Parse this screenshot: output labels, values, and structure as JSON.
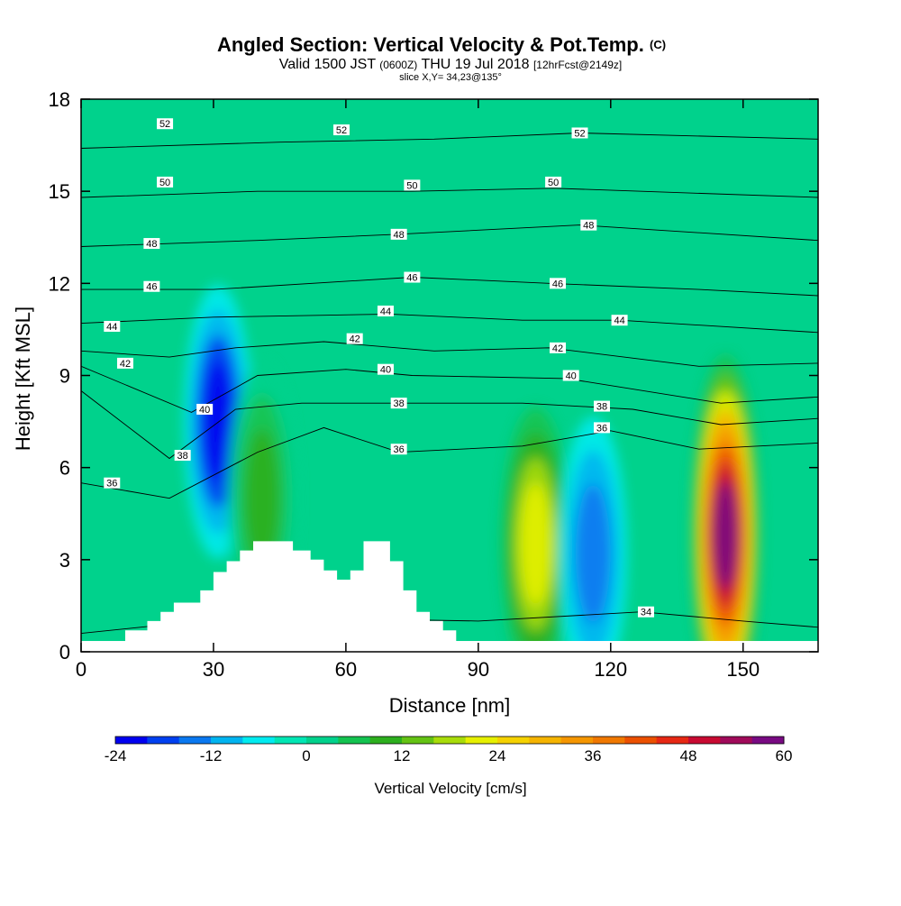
{
  "titles": {
    "main": "Angled Section: Vertical Velocity & Pot.Temp.",
    "main_unit": "(C)",
    "valid_prefix": "Valid 1500 JST",
    "valid_utc": "(0600Z)",
    "valid_date": "THU 19 Jul 2018",
    "forecast": "[12hrFcst@2149z]",
    "slice": "slice X,Y= 34,23@135°"
  },
  "chart_data": {
    "type": "heatmap",
    "xlabel": "Distance [nm]",
    "ylabel": "Height [Kft MSL]",
    "xlim": [
      0,
      167
    ],
    "ylim": [
      0,
      18
    ],
    "x_ticks": [
      0,
      30,
      60,
      90,
      120,
      150
    ],
    "y_ticks": [
      0,
      3,
      6,
      9,
      12,
      15,
      18
    ],
    "colorbar": {
      "title": "Vertical Velocity [cm/s]",
      "tick_values": [
        -24,
        -12,
        0,
        12,
        24,
        36,
        48,
        60
      ],
      "tick_labels": [
        "-24",
        "-12",
        "0",
        "12",
        "24",
        "36",
        "48",
        "60"
      ],
      "levels": [
        -24,
        -20,
        -16,
        -12,
        -8,
        -4,
        0,
        4,
        8,
        12,
        16,
        20,
        24,
        28,
        32,
        36,
        40,
        44,
        48,
        52,
        56,
        60
      ],
      "colors": [
        "#0000f0",
        "#0040f0",
        "#0a78f0",
        "#00b4f0",
        "#00ebf0",
        "#00e6b4",
        "#00d28c",
        "#14c350",
        "#2daf1e",
        "#64c314",
        "#a8dc0a",
        "#e6f000",
        "#f5d200",
        "#f5b400",
        "#f59600",
        "#f07800",
        "#eb5000",
        "#e62814",
        "#c80a32",
        "#a00a5a",
        "#780a82"
      ]
    },
    "features": [
      {
        "name": "downdraft",
        "x": 31,
        "y": 7.5,
        "value": -22
      },
      {
        "name": "updraft",
        "x": 41,
        "y": 5.0,
        "value": 10
      },
      {
        "name": "updraft",
        "x": 103,
        "y": 3.5,
        "value": 22
      },
      {
        "name": "downdraft",
        "x": 116,
        "y": 3.2,
        "value": -16
      },
      {
        "name": "updraft",
        "x": 146,
        "y": 3.8,
        "value": 56
      }
    ],
    "terrain": [
      [
        0,
        0.35
      ],
      [
        10,
        0.35
      ],
      [
        10,
        0.7
      ],
      [
        15,
        0.7
      ],
      [
        15,
        1.0
      ],
      [
        18,
        1.0
      ],
      [
        18,
        1.3
      ],
      [
        21,
        1.3
      ],
      [
        21,
        1.6
      ],
      [
        27,
        1.6
      ],
      [
        27,
        2.0
      ],
      [
        30,
        2.0
      ],
      [
        30,
        2.6
      ],
      [
        33,
        2.6
      ],
      [
        33,
        2.95
      ],
      [
        36,
        2.95
      ],
      [
        36,
        3.3
      ],
      [
        39,
        3.3
      ],
      [
        39,
        3.6
      ],
      [
        48,
        3.6
      ],
      [
        48,
        3.3
      ],
      [
        52,
        3.3
      ],
      [
        52,
        3.0
      ],
      [
        55,
        3.0
      ],
      [
        55,
        2.65
      ],
      [
        58,
        2.65
      ],
      [
        58,
        2.35
      ],
      [
        61,
        2.35
      ],
      [
        61,
        2.65
      ],
      [
        64,
        2.65
      ],
      [
        64,
        3.6
      ],
      [
        70,
        3.6
      ],
      [
        70,
        2.95
      ],
      [
        73,
        2.95
      ],
      [
        73,
        2.0
      ],
      [
        76,
        2.0
      ],
      [
        76,
        1.3
      ],
      [
        79,
        1.3
      ],
      [
        79,
        1.0
      ],
      [
        82,
        1.0
      ],
      [
        82,
        0.7
      ],
      [
        85,
        0.7
      ],
      [
        85,
        0.35
      ],
      [
        167,
        0.35
      ]
    ],
    "theta_contours": [
      {
        "label": "34",
        "pts": [
          [
            0,
            0.6
          ],
          [
            20,
            0.9
          ],
          [
            50,
            1.1
          ],
          [
            90,
            1.0
          ],
          [
            127,
            1.3
          ],
          [
            150,
            1.0
          ],
          [
            167,
            0.8
          ]
        ]
      },
      {
        "label": "36",
        "pts": [
          [
            0,
            5.5
          ],
          [
            20,
            5.0
          ],
          [
            40,
            6.5
          ],
          [
            55,
            7.3
          ],
          [
            72,
            6.5
          ],
          [
            100,
            6.7
          ],
          [
            120,
            7.2
          ],
          [
            140,
            6.6
          ],
          [
            167,
            6.8
          ]
        ]
      },
      {
        "label": "38",
        "pts": [
          [
            0,
            8.5
          ],
          [
            20,
            6.3
          ],
          [
            35,
            7.9
          ],
          [
            50,
            8.1
          ],
          [
            72,
            8.1
          ],
          [
            100,
            8.1
          ],
          [
            125,
            7.9
          ],
          [
            145,
            7.4
          ],
          [
            167,
            7.6
          ]
        ]
      },
      {
        "label": "40",
        "pts": [
          [
            0,
            9.3
          ],
          [
            25,
            7.8
          ],
          [
            40,
            9.0
          ],
          [
            60,
            9.2
          ],
          [
            75,
            9.0
          ],
          [
            110,
            8.9
          ],
          [
            145,
            8.1
          ],
          [
            167,
            8.3
          ]
        ]
      },
      {
        "label": "42",
        "pts": [
          [
            0,
            9.8
          ],
          [
            20,
            9.6
          ],
          [
            35,
            9.9
          ],
          [
            55,
            10.1
          ],
          [
            80,
            9.8
          ],
          [
            106,
            9.9
          ],
          [
            140,
            9.3
          ],
          [
            167,
            9.4
          ]
        ]
      },
      {
        "label": "44",
        "pts": [
          [
            0,
            10.7
          ],
          [
            30,
            10.9
          ],
          [
            70,
            11.0
          ],
          [
            100,
            10.8
          ],
          [
            122,
            10.8
          ],
          [
            167,
            10.4
          ]
        ]
      },
      {
        "label": "46",
        "pts": [
          [
            0,
            11.8
          ],
          [
            30,
            11.8
          ],
          [
            75,
            12.2
          ],
          [
            106,
            12.0
          ],
          [
            140,
            11.8
          ],
          [
            167,
            11.6
          ]
        ]
      },
      {
        "label": "48",
        "pts": [
          [
            0,
            13.2
          ],
          [
            40,
            13.4
          ],
          [
            72,
            13.6
          ],
          [
            113,
            13.9
          ],
          [
            167,
            13.4
          ]
        ]
      },
      {
        "label": "50",
        "pts": [
          [
            0,
            14.8
          ],
          [
            40,
            15.0
          ],
          [
            75,
            15.0
          ],
          [
            107,
            15.1
          ],
          [
            167,
            14.8
          ]
        ]
      },
      {
        "label": "52",
        "pts": [
          [
            0,
            16.4
          ],
          [
            45,
            16.6
          ],
          [
            80,
            16.7
          ],
          [
            113,
            16.9
          ],
          [
            167,
            16.7
          ]
        ]
      }
    ],
    "theta_labels": [
      {
        "text": "52",
        "x": 19,
        "y": 17.2
      },
      {
        "text": "52",
        "x": 59,
        "y": 17.0
      },
      {
        "text": "52",
        "x": 113,
        "y": 16.9
      },
      {
        "text": "50",
        "x": 19,
        "y": 15.3
      },
      {
        "text": "50",
        "x": 75,
        "y": 15.2
      },
      {
        "text": "50",
        "x": 107,
        "y": 15.3
      },
      {
        "text": "48",
        "x": 16,
        "y": 13.3
      },
      {
        "text": "48",
        "x": 72,
        "y": 13.6
      },
      {
        "text": "48",
        "x": 115,
        "y": 13.9
      },
      {
        "text": "46",
        "x": 16,
        "y": 11.9
      },
      {
        "text": "46",
        "x": 75,
        "y": 12.2
      },
      {
        "text": "46",
        "x": 108,
        "y": 12.0
      },
      {
        "text": "44",
        "x": 7,
        "y": 10.6
      },
      {
        "text": "44",
        "x": 69,
        "y": 11.1
      },
      {
        "text": "44",
        "x": 122,
        "y": 10.8
      },
      {
        "text": "42",
        "x": 10,
        "y": 9.4
      },
      {
        "text": "42",
        "x": 62,
        "y": 10.2
      },
      {
        "text": "42",
        "x": 108,
        "y": 9.9
      },
      {
        "text": "40",
        "x": 28,
        "y": 7.9
      },
      {
        "text": "40",
        "x": 69,
        "y": 9.2
      },
      {
        "text": "40",
        "x": 111,
        "y": 9.0
      },
      {
        "text": "38",
        "x": 23,
        "y": 6.4
      },
      {
        "text": "38",
        "x": 72,
        "y": 8.1
      },
      {
        "text": "38",
        "x": 118,
        "y": 8.0
      },
      {
        "text": "36",
        "x": 7,
        "y": 5.5
      },
      {
        "text": "36",
        "x": 72,
        "y": 6.6
      },
      {
        "text": "36",
        "x": 118,
        "y": 7.3
      },
      {
        "text": "34",
        "x": 128,
        "y": 1.3
      }
    ]
  }
}
